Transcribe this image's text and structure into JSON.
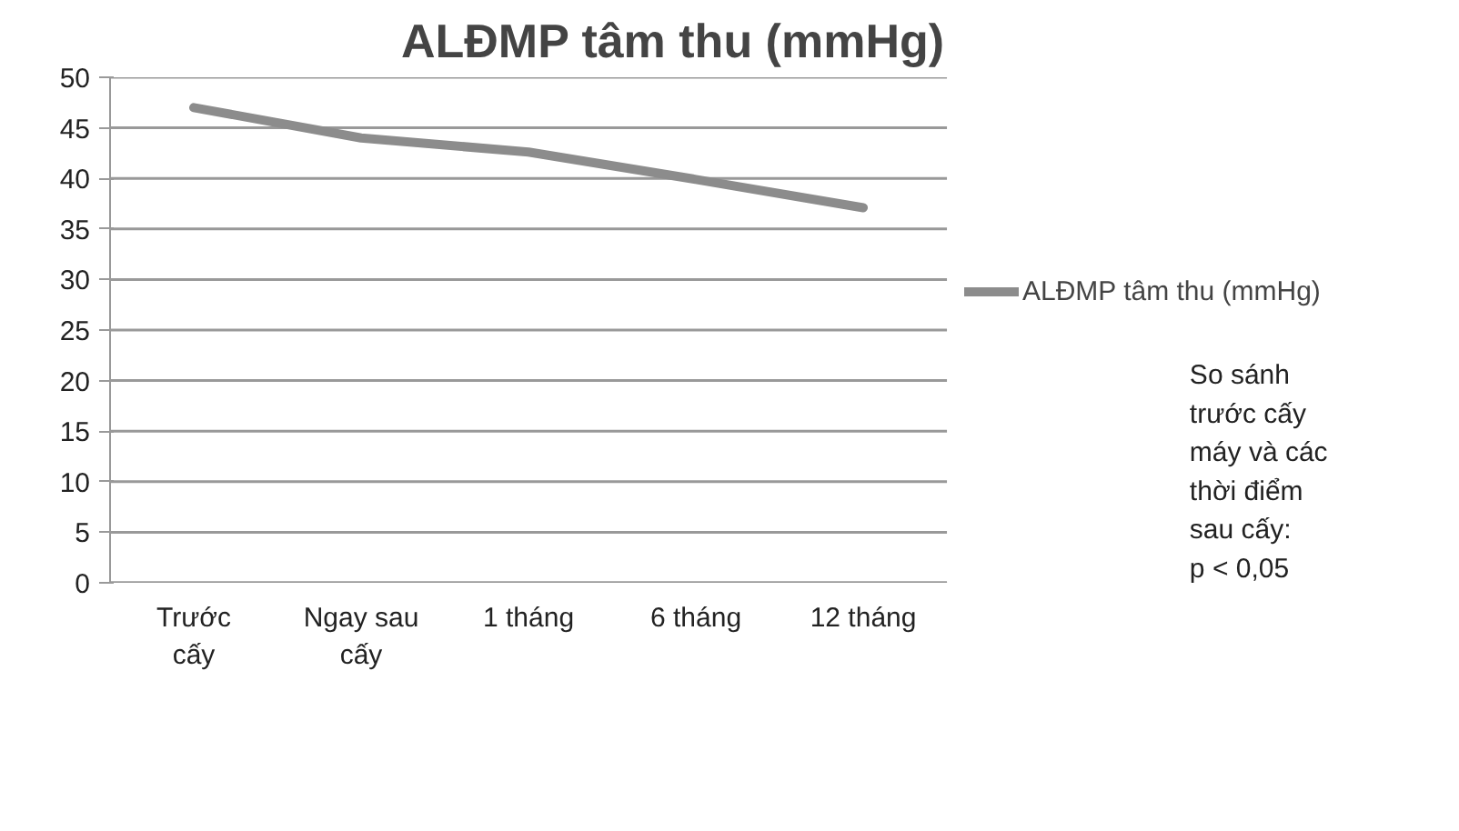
{
  "chart_data": {
    "type": "line",
    "title": "ALĐMP tâm thu (mmHg)",
    "categories": [
      "Trước\ncấy",
      "Ngay sau\ncấy",
      "1 tháng",
      "6 tháng",
      "12 tháng"
    ],
    "series": [
      {
        "name": "ALĐMP tâm thu (mmHg)",
        "color": "#8c8c8c",
        "values": [
          47.0,
          44.0,
          42.6,
          39.9,
          37.1
        ]
      }
    ],
    "ylim": [
      0,
      50
    ],
    "yticks": [
      0,
      5,
      10,
      15,
      20,
      25,
      30,
      35,
      40,
      45,
      50
    ],
    "grid": "y",
    "legend": "right",
    "marker": "none",
    "line_style": "solid",
    "annotations": [
      "So sánh\ntrước cấy\nmáy và  các\nthời điểm\nsau cấy:\np < 0,05"
    ]
  }
}
